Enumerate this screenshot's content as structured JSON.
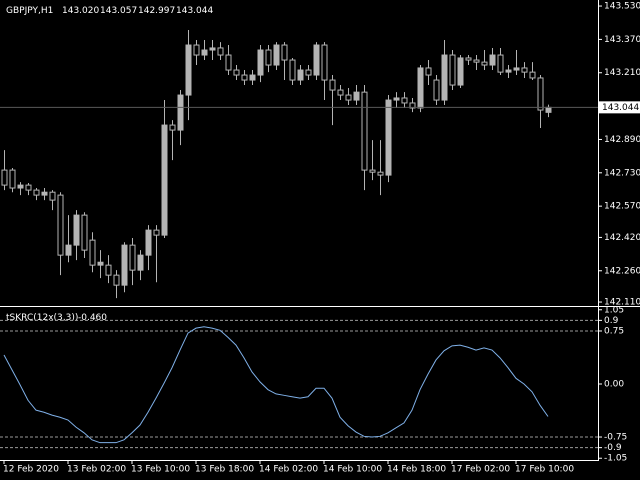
{
  "chart_data": [
    {
      "type": "candlestick",
      "title": "GBPJPY,H1",
      "header_values": [
        "143.020",
        "143.057",
        "142.997",
        "143.044"
      ],
      "categories": [
        "12 Feb 2020",
        null,
        null,
        null,
        null,
        null,
        null,
        null,
        "13 Feb 02:00",
        null,
        null,
        null,
        null,
        null,
        null,
        null,
        "13 Feb 10:00",
        null,
        null,
        null,
        null,
        null,
        null,
        null,
        "13 Feb 18:00",
        null,
        null,
        null,
        null,
        null,
        null,
        null,
        "14 Feb 02:00",
        null,
        null,
        null,
        null,
        null,
        null,
        null,
        "14 Feb 10:00",
        null,
        null,
        null,
        null,
        null,
        null,
        null,
        "14 Feb 18:00",
        null,
        null,
        null,
        null,
        null,
        null,
        null,
        "17 Feb 02:00",
        null,
        null,
        null,
        null,
        null,
        null,
        null,
        "17 Feb 10:00",
        null,
        null,
        null,
        null
      ],
      "open": [
        142.743,
        142.743,
        142.657,
        142.671,
        142.647,
        142.623,
        142.637,
        142.623,
        142.335,
        142.383,
        142.527,
        142.407,
        142.287,
        142.287,
        142.239,
        142.191,
        142.383,
        142.263,
        142.335,
        142.455,
        142.431,
        142.959,
        142.935,
        143.103,
        143.343,
        143.295,
        143.319,
        143.329,
        143.295,
        143.223,
        143.199,
        143.175,
        143.199,
        143.319,
        143.247,
        143.343,
        143.271,
        143.175,
        143.223,
        143.199,
        143.343,
        143.175,
        143.127,
        143.103,
        143.079,
        143.117,
        142.743,
        142.733,
        142.719,
        143.079,
        143.089,
        143.065,
        143.041,
        143.233,
        143.175,
        143.079,
        143.295,
        143.151,
        143.281,
        143.271,
        143.261,
        143.247,
        143.295,
        143.213,
        143.223,
        143.233,
        143.213,
        143.185,
        143.02
      ],
      "high": [
        142.839,
        142.753,
        142.685,
        142.681,
        142.657,
        142.657,
        142.647,
        142.637,
        142.527,
        142.551,
        142.541,
        142.445,
        142.359,
        142.335,
        142.263,
        142.397,
        142.417,
        142.359,
        142.479,
        142.479,
        143.079,
        142.983,
        143.127,
        143.415,
        143.367,
        143.367,
        143.367,
        143.357,
        143.343,
        143.247,
        143.223,
        143.223,
        143.343,
        143.343,
        143.357,
        143.357,
        143.281,
        143.247,
        143.247,
        143.357,
        143.357,
        143.199,
        143.151,
        143.137,
        143.151,
        143.151,
        142.887,
        142.887,
        143.103,
        143.117,
        143.117,
        143.089,
        143.247,
        143.271,
        143.199,
        143.367,
        143.319,
        143.295,
        143.295,
        143.295,
        143.319,
        143.329,
        143.329,
        143.247,
        143.319,
        143.261,
        143.261,
        143.199,
        143.057
      ],
      "low": [
        142.647,
        142.637,
        142.623,
        142.623,
        142.599,
        142.599,
        142.551,
        142.239,
        142.301,
        142.311,
        142.321,
        142.253,
        142.225,
        142.201,
        142.129,
        142.157,
        142.191,
        142.215,
        142.263,
        142.205,
        142.417,
        142.791,
        142.863,
        142.983,
        143.247,
        143.271,
        143.271,
        143.271,
        143.199,
        143.175,
        143.151,
        143.151,
        143.165,
        143.213,
        143.223,
        143.175,
        143.151,
        143.151,
        143.175,
        143.175,
        143.079,
        142.959,
        143.079,
        143.055,
        143.055,
        142.647,
        142.695,
        142.623,
        142.685,
        143.041,
        143.041,
        143.021,
        143.021,
        143.151,
        143.055,
        143.055,
        143.127,
        143.137,
        143.247,
        143.223,
        143.223,
        143.223,
        143.199,
        143.185,
        143.199,
        143.185,
        143.175,
        142.945,
        142.997
      ],
      "close": [
        142.671,
        142.657,
        142.671,
        142.647,
        142.623,
        142.637,
        142.599,
        142.335,
        142.383,
        142.527,
        142.359,
        142.287,
        142.301,
        142.239,
        142.191,
        142.383,
        142.263,
        142.335,
        142.455,
        142.431,
        142.959,
        142.935,
        143.103,
        143.343,
        143.295,
        143.319,
        143.329,
        143.295,
        143.223,
        143.199,
        143.175,
        143.199,
        143.319,
        143.247,
        143.343,
        143.271,
        143.175,
        143.223,
        143.199,
        143.343,
        143.175,
        143.127,
        143.103,
        143.079,
        143.117,
        142.743,
        142.733,
        142.719,
        143.079,
        143.089,
        143.065,
        143.041,
        143.233,
        143.199,
        143.079,
        143.295,
        143.151,
        143.281,
        143.271,
        143.261,
        143.247,
        143.295,
        143.213,
        143.223,
        143.233,
        143.213,
        143.185,
        143.031,
        143.044
      ],
      "color": "#b4b4b4",
      "ylim": [
        142.091,
        143.559
      ],
      "yticks": [
        {
          "value": 143.53,
          "label": "143.530"
        },
        {
          "value": 143.37,
          "label": "143.370"
        },
        {
          "value": 143.21,
          "label": "143.210"
        },
        {
          "value": 142.89,
          "label": "142.890"
        },
        {
          "value": 142.73,
          "label": "142.730"
        },
        {
          "value": 142.57,
          "label": "142.570"
        },
        {
          "value": 142.42,
          "label": "142.420"
        },
        {
          "value": 142.26,
          "label": "142.260"
        },
        {
          "value": 142.11,
          "label": "142.110"
        }
      ],
      "last_price": {
        "value": 143.044,
        "label": "143.044"
      }
    },
    {
      "type": "line",
      "title": "tSKRC(12x(3,3))",
      "last_value": {
        "value": -0.46,
        "label": "-0.460"
      },
      "values": [
        0.41,
        0.2,
        -0.01,
        -0.23,
        -0.37,
        -0.4,
        -0.44,
        -0.47,
        -0.51,
        -0.61,
        -0.69,
        -0.79,
        -0.83,
        -0.83,
        -0.83,
        -0.79,
        -0.69,
        -0.58,
        -0.4,
        -0.2,
        0.01,
        0.23,
        0.48,
        0.72,
        0.79,
        0.81,
        0.79,
        0.76,
        0.66,
        0.55,
        0.37,
        0.17,
        0.03,
        -0.08,
        -0.14,
        -0.16,
        -0.18,
        -0.2,
        -0.18,
        -0.06,
        -0.06,
        -0.2,
        -0.47,
        -0.59,
        -0.68,
        -0.74,
        -0.75,
        -0.74,
        -0.69,
        -0.62,
        -0.55,
        -0.37,
        -0.08,
        0.14,
        0.34,
        0.47,
        0.54,
        0.55,
        0.52,
        0.48,
        0.51,
        0.48,
        0.37,
        0.23,
        0.08,
        0.0,
        -0.11,
        -0.3,
        -0.46
      ],
      "color": "#7fb0e8",
      "ylim": [
        -1.075,
        1.075
      ],
      "yticks": [
        1.05,
        0.9,
        0.75,
        {
          "value": 0,
          "label": "0.00"
        },
        -0.75,
        -0.9,
        -1.05
      ],
      "levels": [
        0.9,
        0.75,
        -0.75,
        -0.9
      ]
    }
  ]
}
